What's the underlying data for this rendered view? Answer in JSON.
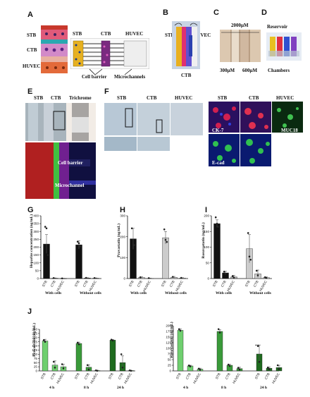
{
  "panel_letters": [
    "A",
    "B",
    "C",
    "D",
    "E",
    "F",
    "G",
    "H",
    "I",
    "J"
  ],
  "panel_a": {
    "layers": [
      "STB",
      "CTB",
      "HUVEC"
    ],
    "cols": [
      "STB",
      "CTB",
      "HUVEC"
    ],
    "cell_barrier": "Cell barrier",
    "microchannels": "Microchannels"
  },
  "panel_b": {
    "stb": "STB",
    "huvec": "HUVEC",
    "ctb": "CTB"
  },
  "panel_c": {
    "top": "2000μM",
    "left": "300μM",
    "right": "600μM"
  },
  "panel_d": {
    "top": "Reservoir",
    "bottom": "Chambers"
  },
  "panel_e": {
    "cols": [
      "STB",
      "CTB",
      "Trichrome"
    ],
    "cell_barrier": "Cell barrier",
    "microchannel": "Microchannel"
  },
  "panel_f": {
    "cols_bright": [
      "STB",
      "CTB",
      "HUVEC"
    ],
    "cols_fluo": [
      "STB",
      "CTB",
      "HUVEC"
    ],
    "ck7": "CK-7",
    "muc18": "MUC18",
    "ecad": "E-cad"
  },
  "panel_g": {
    "ylabel": "Heparins concentration (ng/mL)",
    "group1": "With cells",
    "group2": "Without cells"
  },
  "panel_h": {
    "ylabel": "Pravastatin (ng/mL)",
    "group1": "With cells",
    "group2": "Without cells"
  },
  "panel_i": {
    "ylabel": "Rosuvastatin (ng/mL)",
    "group1": "With cells",
    "group2": "Without cells"
  },
  "panel_j": {
    "ylabel_left": "Pravastatin (ng/mL)",
    "ylabel_right": "Rosuvastatin (ng/mL)",
    "times": [
      "4 h",
      "8 h",
      "24 h"
    ],
    "stars": "**"
  },
  "chart_data": [
    {
      "type": "bar",
      "panel": "G",
      "categories": [
        "STB",
        "CTB",
        "HUVEC",
        "STB",
        "CTB",
        "HUVEC"
      ],
      "values": [
        220,
        2,
        1,
        215,
        3,
        2
      ],
      "ylim": [
        0,
        400
      ],
      "yticks": [
        0,
        50,
        100,
        150,
        200,
        250,
        300,
        350,
        400
      ],
      "colors": [
        "#111111",
        "#111111",
        "#111111",
        "#111111",
        "#111111",
        "#111111"
      ]
    },
    {
      "type": "bar",
      "panel": "H",
      "categories": [
        "STB",
        "CTB",
        "HUVEC",
        "STB",
        "CTB",
        "HUVEC"
      ],
      "values": [
        190,
        5,
        1,
        195,
        6,
        2
      ],
      "ylim": [
        0,
        300
      ],
      "yticks": [
        0,
        100,
        200,
        300
      ],
      "colors": [
        "#111111",
        "#cccccc",
        "#cccccc",
        "#cccccc",
        "#cccccc",
        "#cccccc"
      ]
    },
    {
      "type": "bar",
      "panel": "I",
      "categories": [
        "STB",
        "CTB",
        "HUVEC",
        "STB",
        "CTB",
        "HUVEC"
      ],
      "values": [
        175,
        18,
        5,
        95,
        15,
        3
      ],
      "ylim": [
        0,
        200
      ],
      "yticks": [
        0,
        50,
        100,
        150,
        200
      ],
      "colors": [
        "#111111",
        "#111111",
        "#aaaaaa",
        "#cccccc",
        "#cccccc",
        "#cccccc"
      ]
    },
    {
      "type": "bar",
      "panel": "J-left",
      "categories": [
        "STB",
        "CTB",
        "HUVEC",
        "STB",
        "CTB",
        "HUVEC",
        "STB",
        "CTB",
        "HUVEC"
      ],
      "values": [
        180,
        35,
        25,
        165,
        22,
        2,
        185,
        50,
        2
      ],
      "ylim": [
        0,
        250
      ],
      "yticks": [
        0,
        25,
        50,
        75,
        100,
        125,
        150,
        175,
        200,
        225,
        250
      ],
      "colors": [
        "#6fcf6f",
        "#6fcf6f",
        "#6fcf6f",
        "#3a9a3a",
        "#3a9a3a",
        "#3a9a3a",
        "#1f6b1f",
        "#1f6b1f",
        "#1f6b1f"
      ]
    },
    {
      "type": "bar",
      "panel": "J-right",
      "categories": [
        "STB",
        "CTB",
        "HUVEC",
        "STB",
        "CTB",
        "HUVEC",
        "STB",
        "CTB",
        "HUVEC"
      ],
      "values": [
        180,
        22,
        8,
        175,
        25,
        10,
        75,
        12,
        15
      ],
      "ylim": [
        0,
        200
      ],
      "yticks": [
        0,
        25,
        50,
        75,
        100,
        125,
        150,
        175,
        200
      ],
      "colors": [
        "#6fcf6f",
        "#6fcf6f",
        "#6fcf6f",
        "#3a9a3a",
        "#3a9a3a",
        "#3a9a3a",
        "#1f6b1f",
        "#1f6b1f",
        "#1f6b1f"
      ]
    }
  ]
}
